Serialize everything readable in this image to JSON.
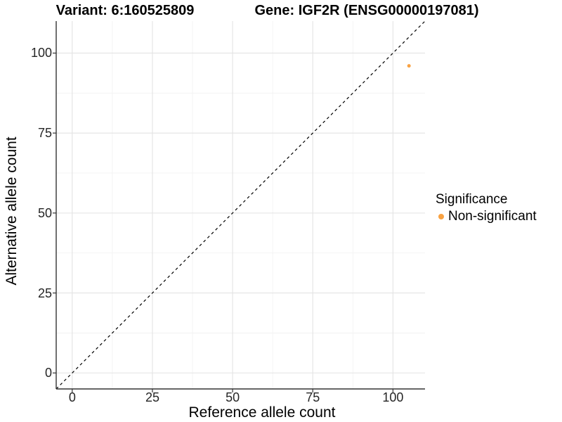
{
  "page": {
    "background": "#FFFFFF"
  },
  "chart_data": {
    "type": "scatter",
    "titles": [
      "Variant: 6:160525809",
      "Gene: IGF2R (ENSG00000197081)"
    ],
    "xlabel": "Reference allele count",
    "ylabel": "Alternative allele count",
    "xlim": [
      -5,
      110
    ],
    "ylim": [
      -5,
      110
    ],
    "x_ticks": [
      0,
      25,
      50,
      75,
      100
    ],
    "y_ticks": [
      0,
      25,
      50,
      75,
      100
    ],
    "x_minor_ticks": [
      12.5,
      37.5,
      62.5,
      87.5
    ],
    "y_minor_ticks": [
      12.5,
      37.5,
      62.5,
      87.5
    ],
    "grid": true,
    "legend_position": "right",
    "reference_line": {
      "type": "identity",
      "style": "dashed",
      "color": "#000000"
    },
    "series": [
      {
        "name": "Non-significant",
        "color": "#F9A242",
        "points": [
          [
            105,
            96
          ]
        ],
        "point_radius": 2.5
      }
    ],
    "legend": {
      "title": "Significance",
      "items": [
        {
          "label": "Non-significant",
          "color": "#F9A242"
        }
      ]
    },
    "colors": {
      "grid_major": "#E3E3E3",
      "grid_minor": "#F1F1F1",
      "axis": "#333333",
      "tick": "#333333",
      "tick_label": "#262626"
    }
  }
}
